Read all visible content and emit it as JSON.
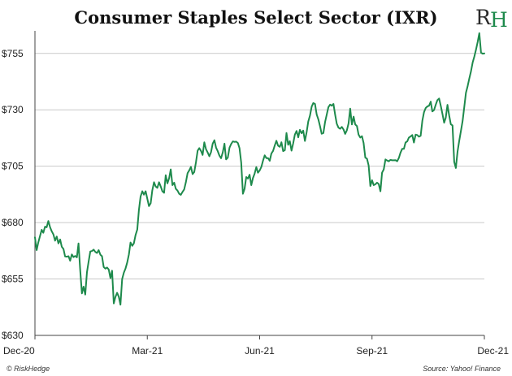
{
  "chart_data": {
    "type": "line",
    "title": "Consumer Staples Select Sector (IXR)",
    "xlabel": "",
    "ylabel": "",
    "ylim": [
      630,
      765
    ],
    "yticks": [
      630,
      655,
      680,
      705,
      730,
      755
    ],
    "ytick_labels": [
      "$630",
      "$655",
      "$680",
      "$705",
      "$730",
      "$755"
    ],
    "x_tick_labels": [
      "Dec-20",
      "Mar-21",
      "Jun-21",
      "Sep-21",
      "Dec-21"
    ],
    "grid": "horizontal",
    "line_color": "#1e8a4c",
    "series": [
      {
        "values": [
          673.5,
          667.8,
          671.2,
          674.0,
          676.8,
          675.5,
          678.2,
          677.9,
          680.7,
          678.0,
          676.2,
          674.8,
          672.0,
          673.8,
          670.8,
          672.5,
          669.3,
          668.3,
          665.0,
          664.9,
          665.1,
          663.1,
          665.9,
          664.7,
          665.2,
          664.6,
          670.8,
          658.9,
          648.6,
          651.6,
          648.1,
          658.0,
          662.6,
          667.2,
          667.4,
          668.0,
          667.0,
          666.5,
          667.8,
          665.8,
          665.1,
          660.3,
          659.6,
          660.1,
          659.2,
          655.4,
          658.7,
          644.2,
          647.0,
          648.9,
          647.1,
          643.6,
          655.0,
          657.8,
          659.6,
          662.3,
          665.9,
          671.2,
          669.7,
          670.8,
          674.5,
          676.9,
          685.5,
          691.6,
          693.9,
          692.4,
          693.9,
          690.5,
          687.3,
          688.6,
          694.3,
          697.9,
          696.0,
          695.4,
          697.9,
          696.0,
          693.9,
          693.2,
          701.0,
          697.4,
          699.7,
          703.6,
          696.6,
          697.7,
          695.0,
          694.2,
          692.8,
          692.3,
          693.6,
          694.7,
          697.9,
          701.9,
          703.1,
          704.7,
          701.5,
          702.4,
          706.7,
          711.9,
          713.0,
          711.8,
          710.0,
          715.6,
          712.5,
          711.1,
          709.4,
          711.3,
          715.0,
          716.5,
          713.2,
          711.7,
          709.7,
          708.5,
          711.1,
          715.0,
          708.0,
          708.8,
          713.2,
          714.8,
          716.0,
          715.8,
          715.9,
          715.3,
          713.0,
          706.6,
          692.8,
          694.9,
          700.2,
          699.5,
          701.2,
          696.6,
          699.7,
          701.7,
          704.6,
          702.1,
          703.1,
          704.7,
          707.4,
          709.8,
          708.6,
          708.6,
          707.4,
          710.6,
          711.8,
          714.2,
          716.3,
          714.1,
          713.6,
          715.6,
          711.7,
          712.1,
          719.7,
          714.5,
          716.1,
          711.9,
          715.2,
          719.0,
          720.6,
          717.8,
          721.1,
          719.6,
          720.8,
          716.2,
          720.1,
          724.8,
          727.4,
          731.4,
          733.0,
          732.6,
          727.9,
          725.8,
          722.7,
          719.4,
          719.7,
          724.6,
          727.8,
          731.2,
          732.3,
          731.8,
          732.6,
          727.8,
          723.8,
          722.1,
          721.6,
          722.4,
          721.3,
          719.3,
          720.9,
          724.0,
          730.5,
          723.5,
          727.0,
          723.5,
          722.8,
          719.0,
          717.7,
          718.3,
          715.3,
          708.8,
          708.3,
          705.3,
          696.2,
          698.8,
          696.6,
          697.0,
          697.7,
          697.1,
          693.9,
          702.1,
          703.6,
          708.0,
          707.5,
          707.2,
          707.8,
          707.6,
          707.6,
          707.7,
          707.2,
          708.7,
          711.0,
          712.7,
          712.7,
          715.5,
          716.0,
          717.7,
          718.2,
          718.8,
          715.5,
          719.0,
          718.8,
          718.1,
          718.5,
          725.2,
          728.9,
          730.8,
          731.5,
          731.8,
          733.6,
          729.3,
          729.9,
          732.3,
          734.3,
          735.0,
          731.7,
          728.2,
          724.3,
          726.5,
          732.2,
          727.5,
          723.6,
          723.1,
          706.9,
          704.2,
          711.5,
          716.1,
          720.5,
          725.0,
          731.0,
          737.5,
          740.5,
          743.8,
          747.0,
          751.0,
          753.5,
          756.7,
          760.0,
          764.0,
          755.3,
          754.9,
          755.0
        ]
      }
    ]
  },
  "branding": {
    "logo_r": "R",
    "logo_h": "H",
    "copyright": "© RiskHedge",
    "source": "Source: Yahoo! Finance"
  }
}
